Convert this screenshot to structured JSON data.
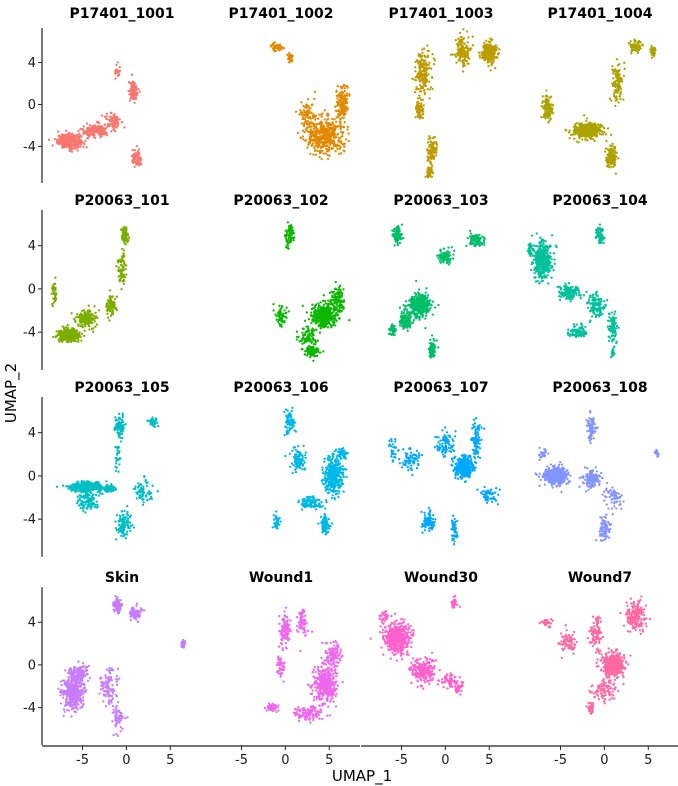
{
  "chart_data": {
    "type": "scatter",
    "xlabel": "UMAP_1",
    "ylabel": "UMAP_2",
    "xlim": [
      -9.5,
      8.5
    ],
    "ylim": [
      -7.5,
      7.3
    ],
    "xticks": [
      -5,
      0,
      5
    ],
    "yticks": [
      4,
      0,
      -4
    ],
    "grid": false,
    "legend": "none",
    "panels": [
      {
        "title": "P17401_1001",
        "color": "#F8766D",
        "clusters": [
          [
            -6.5,
            -3.5,
            1.2,
            0.6,
            0.4
          ],
          [
            -3.5,
            -2.5,
            1.5,
            0.6,
            0.18
          ],
          [
            -1.5,
            -1.5,
            0.8,
            0.6,
            0.08
          ],
          [
            0.8,
            1.3,
            0.5,
            1.0,
            0.1
          ],
          [
            1.2,
            -5.2,
            0.5,
            0.7,
            0.08
          ],
          [
            -1,
            3,
            0.3,
            1.0,
            0.02
          ]
        ]
      },
      {
        "title": "P17401_1002",
        "color": "#E18A00",
        "clusters": [
          [
            4.5,
            -3,
            1.8,
            1.5,
            0.5
          ],
          [
            6.5,
            0,
            0.6,
            1.5,
            0.18
          ],
          [
            2.5,
            -1,
            0.8,
            1.5,
            0.1
          ],
          [
            -1,
            5.5,
            0.6,
            0.3,
            0.06
          ],
          [
            0.5,
            4.5,
            0.3,
            0.4,
            0.03
          ]
        ]
      },
      {
        "title": "P17401_1003",
        "color": "#BE9C00",
        "clusters": [
          [
            2,
            5,
            0.8,
            1.5,
            0.15
          ],
          [
            5,
            5,
            0.7,
            0.8,
            0.3
          ],
          [
            -2.5,
            3,
            0.8,
            2.0,
            0.2
          ],
          [
            -1.5,
            -4.5,
            0.5,
            1.0,
            0.12
          ],
          [
            -3,
            -0.5,
            0.4,
            0.8,
            0.08
          ],
          [
            -1.8,
            -6.5,
            0.4,
            0.5,
            0.05
          ]
        ]
      },
      {
        "title": "P17401_1004",
        "color": "#ACA300",
        "clusters": [
          [
            -2,
            -2.5,
            1.5,
            0.7,
            0.4
          ],
          [
            -6.5,
            -0.5,
            0.5,
            1.0,
            0.15
          ],
          [
            0.8,
            -5,
            0.6,
            1.0,
            0.18
          ],
          [
            1.5,
            2,
            0.5,
            1.8,
            0.12
          ],
          [
            3.5,
            5.5,
            0.6,
            0.5,
            0.1
          ],
          [
            5.5,
            5,
            0.3,
            0.4,
            0.05
          ]
        ]
      },
      {
        "title": "P20063_101",
        "color": "#7CAE00",
        "clusters": [
          [
            -6.5,
            -4.3,
            1.0,
            0.5,
            0.5
          ],
          [
            -4.5,
            -2.8,
            1.0,
            0.7,
            0.2
          ],
          [
            -1.8,
            -1.5,
            0.5,
            0.8,
            0.1
          ],
          [
            -0.5,
            2,
            0.4,
            1.5,
            0.08
          ],
          [
            -0.2,
            5,
            0.3,
            0.8,
            0.08
          ],
          [
            -8.2,
            -0.5,
            0.3,
            1.0,
            0.04
          ]
        ]
      },
      {
        "title": "P20063_102",
        "color": "#0CB702",
        "clusters": [
          [
            4.5,
            -2.5,
            1.3,
            1.0,
            0.45
          ],
          [
            6,
            -1,
            0.8,
            1.2,
            0.12
          ],
          [
            2.5,
            -4.5,
            1.0,
            0.8,
            0.1
          ],
          [
            0.5,
            5,
            0.5,
            0.9,
            0.08
          ],
          [
            -0.5,
            -2.5,
            0.6,
            0.9,
            0.07
          ],
          [
            3,
            -5.8,
            0.8,
            0.4,
            0.1
          ]
        ]
      },
      {
        "title": "P20063_103",
        "color": "#00BE67",
        "clusters": [
          [
            -3,
            -1.5,
            1.2,
            1.0,
            0.4
          ],
          [
            -4.5,
            -3,
            0.7,
            0.7,
            0.12
          ],
          [
            -5.5,
            5,
            0.5,
            0.8,
            0.1
          ],
          [
            3.5,
            4.5,
            0.8,
            0.5,
            0.1
          ],
          [
            -1.5,
            -5.5,
            0.3,
            0.8,
            0.08
          ],
          [
            0,
            3,
            0.8,
            0.6,
            0.1
          ],
          [
            -6,
            -3.8,
            0.4,
            0.5,
            0.05
          ]
        ]
      },
      {
        "title": "P20063_104",
        "color": "#00C19A",
        "clusters": [
          [
            -7,
            2.5,
            1.0,
            1.5,
            0.4
          ],
          [
            -4,
            -0.3,
            1.2,
            0.6,
            0.15
          ],
          [
            -1,
            -1.5,
            1.0,
            1.0,
            0.12
          ],
          [
            -3,
            -4,
            1.0,
            0.5,
            0.1
          ],
          [
            -0.5,
            5,
            0.4,
            0.7,
            0.07
          ],
          [
            1,
            -3.5,
            0.5,
            1.5,
            0.1
          ],
          [
            1,
            -6,
            0.2,
            0.4,
            0.02
          ],
          [
            -8.5,
            3.8,
            0.2,
            0.6,
            0.04
          ]
        ]
      },
      {
        "title": "P20063_105",
        "color": "#00BFC4",
        "clusters": [
          [
            -4.5,
            -1,
            1.5,
            0.4,
            0.4
          ],
          [
            -2,
            -1.2,
            0.6,
            0.3,
            0.1
          ],
          [
            -4.5,
            -2.3,
            1.0,
            0.8,
            0.12
          ],
          [
            -0.8,
            4.5,
            0.5,
            1.0,
            0.1
          ],
          [
            3,
            5,
            0.5,
            0.4,
            0.05
          ],
          [
            -0.3,
            -4.5,
            0.8,
            1.2,
            0.12
          ],
          [
            2,
            -1.5,
            1.0,
            1.0,
            0.08
          ],
          [
            -1,
            1.5,
            0.3,
            1.0,
            0.03
          ]
        ]
      },
      {
        "title": "P20063_106",
        "color": "#00B8E7",
        "clusters": [
          [
            5.5,
            0,
            1.0,
            1.5,
            0.4
          ],
          [
            4.5,
            -4.5,
            0.4,
            0.8,
            0.12
          ],
          [
            3,
            -2.5,
            1.2,
            0.6,
            0.12
          ],
          [
            0.5,
            5,
            0.6,
            0.9,
            0.08
          ],
          [
            1.5,
            1.5,
            0.8,
            1.0,
            0.1
          ],
          [
            6.5,
            2,
            0.5,
            0.4,
            0.06
          ],
          [
            -1,
            -4.3,
            0.3,
            0.6,
            0.04
          ]
        ]
      },
      {
        "title": "P20063_107",
        "color": "#00A9FF",
        "clusters": [
          [
            2,
            0.8,
            0.9,
            0.8,
            0.45
          ],
          [
            3.5,
            3.5,
            0.5,
            1.5,
            0.12
          ],
          [
            -2,
            -4.2,
            0.6,
            0.8,
            0.1
          ],
          [
            1,
            -5,
            0.3,
            1.0,
            0.06
          ],
          [
            -4,
            1.5,
            1.0,
            1.0,
            0.08
          ],
          [
            0,
            3,
            1.0,
            1.0,
            0.1
          ],
          [
            5,
            -1.8,
            1.0,
            0.6,
            0.06
          ],
          [
            -6,
            2.5,
            0.6,
            1.0,
            0.03
          ]
        ]
      },
      {
        "title": "P20063_108",
        "color": "#8494FF",
        "clusters": [
          [
            -5.5,
            0,
            1.2,
            0.7,
            0.5
          ],
          [
            -1.5,
            -0.3,
            1.0,
            0.8,
            0.15
          ],
          [
            -1.5,
            4.5,
            0.4,
            1.0,
            0.1
          ],
          [
            1,
            -2,
            1.0,
            1.0,
            0.07
          ],
          [
            0,
            -5,
            0.5,
            1.0,
            0.1
          ],
          [
            -7,
            2,
            0.5,
            0.4,
            0.03
          ],
          [
            6,
            2,
            0.2,
            0.3,
            0.02
          ]
        ]
      },
      {
        "title": "Skin",
        "color": "#C77CFF",
        "clusters": [
          [
            -6,
            -2.5,
            1.2,
            1.5,
            0.45
          ],
          [
            -5.5,
            -0.8,
            1.0,
            0.6,
            0.12
          ],
          [
            -1,
            5.5,
            0.4,
            0.6,
            0.12
          ],
          [
            1,
            4.8,
            0.6,
            0.5,
            0.1
          ],
          [
            -2,
            -2,
            0.8,
            1.5,
            0.12
          ],
          [
            6.5,
            2,
            0.2,
            0.3,
            0.03
          ],
          [
            -1,
            -5,
            0.6,
            1.0,
            0.06
          ]
        ]
      },
      {
        "title": "Wound1",
        "color": "#ED68ED",
        "clusters": [
          [
            4.5,
            -1.8,
            1.2,
            1.5,
            0.45
          ],
          [
            5.5,
            1,
            0.8,
            1.0,
            0.12
          ],
          [
            0,
            3.5,
            0.5,
            1.5,
            0.12
          ],
          [
            2.5,
            -4.5,
            1.5,
            0.6,
            0.12
          ],
          [
            -1.5,
            -4,
            0.7,
            0.3,
            0.06
          ],
          [
            2,
            4,
            0.5,
            1.2,
            0.08
          ],
          [
            -0.5,
            0,
            0.4,
            1.2,
            0.05
          ]
        ]
      },
      {
        "title": "Wound30",
        "color": "#FF61CC",
        "clusters": [
          [
            -5.5,
            2.5,
            1.3,
            1.3,
            0.55
          ],
          [
            -2.5,
            -0.5,
            1.2,
            1.0,
            0.25
          ],
          [
            0.5,
            -1.5,
            1.0,
            0.6,
            0.08
          ],
          [
            1.5,
            -2.3,
            0.4,
            0.5,
            0.04
          ],
          [
            1,
            5.8,
            0.3,
            0.5,
            0.04
          ],
          [
            -7,
            4.5,
            0.5,
            0.5,
            0.04
          ]
        ]
      },
      {
        "title": "Wound7",
        "color": "#FF68A1",
        "clusters": [
          [
            1,
            0,
            1.2,
            1.0,
            0.45
          ],
          [
            3.5,
            4.5,
            1.0,
            1.3,
            0.2
          ],
          [
            -1,
            3,
            0.6,
            1.5,
            0.1
          ],
          [
            -4,
            2,
            1.0,
            1.0,
            0.08
          ],
          [
            0,
            -2.5,
            1.5,
            1.0,
            0.1
          ],
          [
            -1.5,
            -4,
            0.4,
            0.6,
            0.04
          ],
          [
            -6.5,
            4,
            0.6,
            0.4,
            0.03
          ]
        ]
      }
    ]
  }
}
